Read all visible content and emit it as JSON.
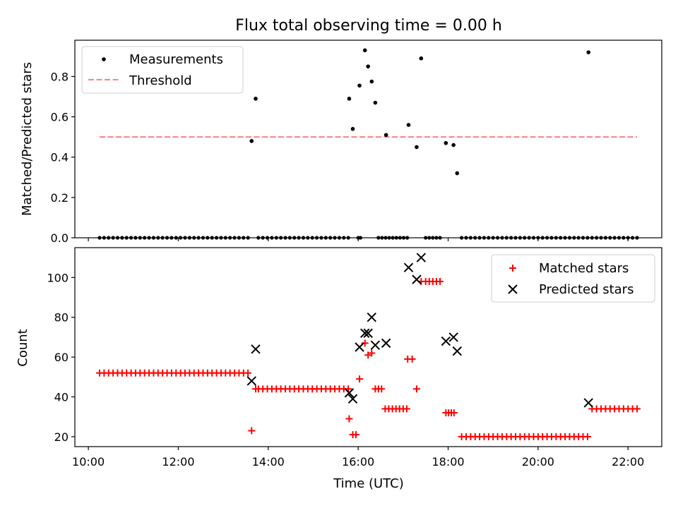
{
  "title": "Flux total observing time = 0.00 h",
  "chart_data": [
    {
      "type": "scatter",
      "ylabel": "Matched/Predicted stars",
      "xlabel": "",
      "xlim": [
        9.7,
        22.75
      ],
      "ylim": [
        0,
        0.98
      ],
      "yticks": [
        0.0,
        0.2,
        0.4,
        0.6,
        0.8
      ],
      "ytick_labels": [
        "0.0",
        "0.2",
        "0.4",
        "0.6",
        "0.8"
      ],
      "legend": {
        "placement": "top-left",
        "entries": [
          "Measurements",
          "Threshold"
        ]
      },
      "threshold": {
        "name": "Threshold",
        "value": 0.5,
        "x_range": [
          10.25,
          22.2
        ],
        "color": "#ff7f7f"
      },
      "measurements": {
        "name": "Measurements",
        "color": "#000000",
        "points": [
          [
            13.63,
            0.48
          ],
          [
            13.72,
            0.69
          ],
          [
            15.8,
            0.69
          ],
          [
            15.88,
            0.54
          ],
          [
            16.03,
            0.755
          ],
          [
            16.15,
            0.93
          ],
          [
            16.22,
            0.85
          ],
          [
            16.3,
            0.775
          ],
          [
            16.38,
            0.67
          ],
          [
            16.62,
            0.51
          ],
          [
            17.12,
            0.56
          ],
          [
            17.3,
            0.45
          ],
          [
            17.4,
            0.89
          ],
          [
            17.95,
            0.47
          ],
          [
            18.12,
            0.46
          ],
          [
            18.2,
            0.32
          ],
          [
            21.12,
            0.92
          ]
        ],
        "zero_segments": [
          [
            10.25,
            13.55,
            0.1
          ],
          [
            13.78,
            15.75,
            0.1
          ],
          [
            16.0,
            16.05,
            0.05
          ],
          [
            16.45,
            17.05,
            0.08
          ],
          [
            17.5,
            17.85,
            0.08
          ],
          [
            18.3,
            21.05,
            0.1
          ],
          [
            21.2,
            22.2,
            0.1
          ]
        ]
      }
    },
    {
      "type": "scatter",
      "ylabel": "Count",
      "xlabel": "Time (UTC)",
      "xlim": [
        9.7,
        22.75
      ],
      "ylim": [
        15,
        115
      ],
      "xticks": [
        10,
        12,
        14,
        16,
        18,
        20,
        22
      ],
      "xtick_labels": [
        "10:00",
        "12:00",
        "14:00",
        "16:00",
        "18:00",
        "20:00",
        "22:00"
      ],
      "yticks": [
        20,
        40,
        60,
        80,
        100
      ],
      "ytick_labels": [
        "20",
        "40",
        "60",
        "80",
        "100"
      ],
      "legend": {
        "placement": "top-right",
        "entries": [
          "Matched stars",
          "Predicted stars"
        ]
      },
      "series": [
        {
          "name": "Matched stars",
          "marker": "plus",
          "color": "#ff0000",
          "segments": [
            [
              10.25,
              13.55,
              0.1,
              52
            ],
            [
              13.78,
              15.75,
              0.1,
              44
            ],
            [
              21.2,
              22.2,
              0.1,
              34
            ],
            [
              18.3,
              21.05,
              0.1,
              20
            ],
            [
              16.6,
              17.05,
              0.08,
              34
            ],
            [
              17.5,
              17.85,
              0.08,
              98
            ],
            [
              16.38,
              16.52,
              0.07,
              44
            ],
            [
              17.1,
              17.2,
              0.1,
              59
            ],
            [
              17.95,
              18.12,
              0.06,
              32
            ]
          ],
          "points": [
            [
              13.63,
              23
            ],
            [
              13.72,
              44
            ],
            [
              15.8,
              29
            ],
            [
              15.88,
              21
            ],
            [
              15.95,
              21
            ],
            [
              16.03,
              49
            ],
            [
              16.15,
              67
            ],
            [
              16.22,
              61
            ],
            [
              16.3,
              62
            ],
            [
              17.3,
              44
            ],
            [
              17.4,
              98
            ]
          ]
        },
        {
          "name": "Predicted stars",
          "marker": "x",
          "color": "#000000",
          "points": [
            [
              13.63,
              48
            ],
            [
              13.72,
              64
            ],
            [
              15.8,
              42
            ],
            [
              15.88,
              39
            ],
            [
              16.03,
              65
            ],
            [
              16.15,
              72
            ],
            [
              16.22,
              72
            ],
            [
              16.3,
              80
            ],
            [
              16.38,
              66
            ],
            [
              16.62,
              67
            ],
            [
              17.12,
              105
            ],
            [
              17.3,
              99
            ],
            [
              17.4,
              110
            ],
            [
              17.95,
              68
            ],
            [
              18.12,
              70
            ],
            [
              18.2,
              63
            ],
            [
              21.12,
              37
            ]
          ]
        }
      ]
    }
  ]
}
